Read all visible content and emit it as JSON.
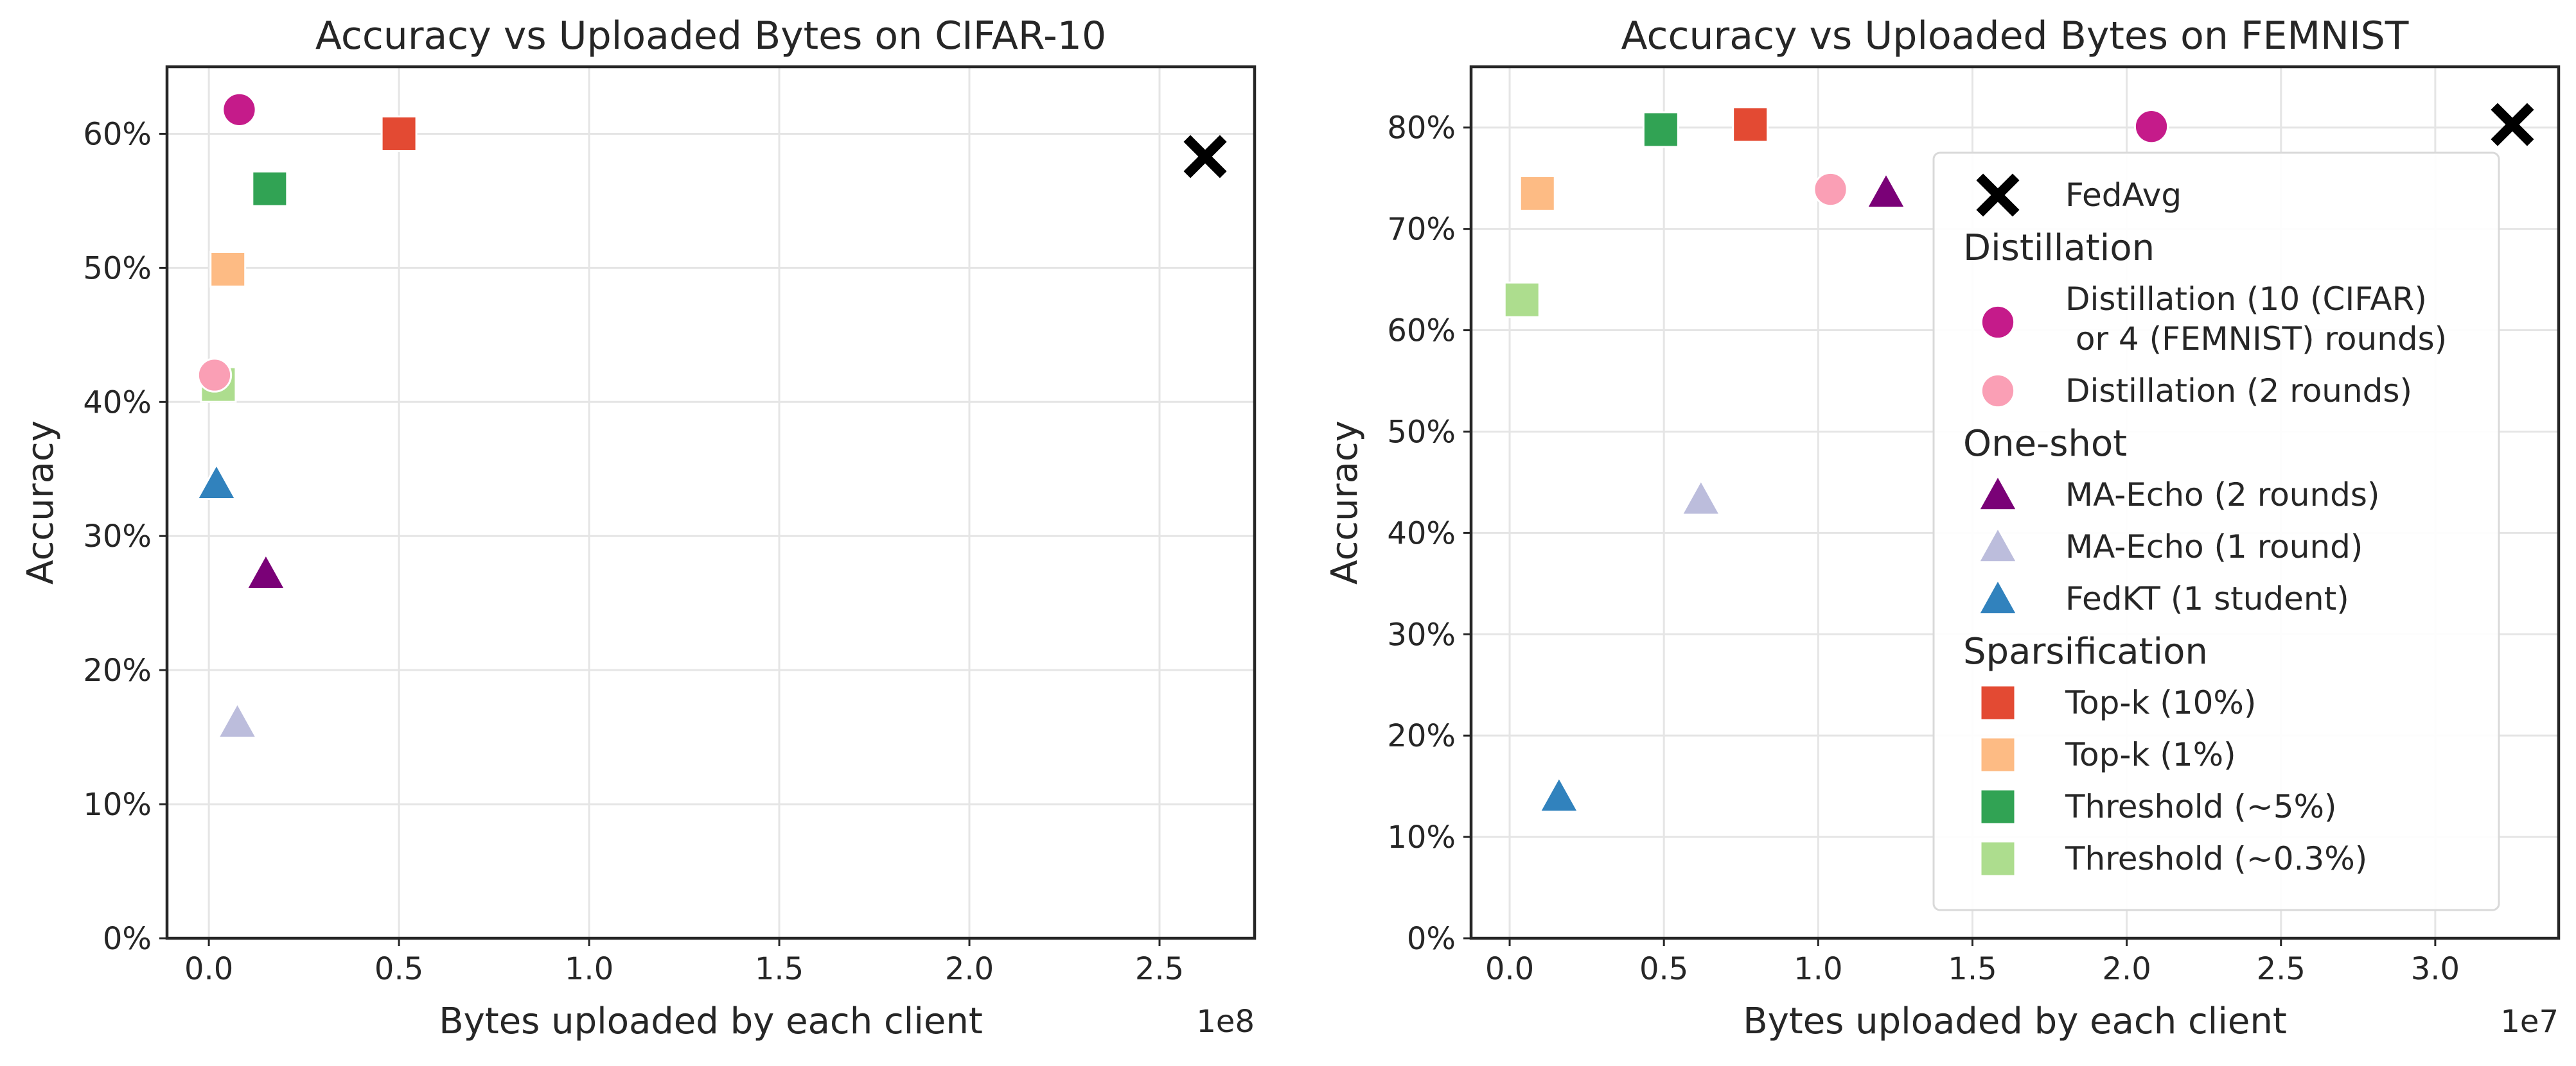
{
  "chart_data": [
    {
      "type": "scatter",
      "title": "Accuracy vs Uploaded Bytes on CIFAR-10",
      "xlabel": "Bytes uploaded by each client",
      "ylabel": "Accuracy",
      "x_offset_label": "1e8",
      "x_scale": 100000000,
      "xlim": [
        -11000000,
        275000000
      ],
      "ylim": [
        0,
        65
      ],
      "xticks": [
        0,
        50000000,
        100000000,
        150000000,
        200000000,
        250000000
      ],
      "xtick_labels": [
        "0.0",
        "0.5",
        "1.0",
        "1.5",
        "2.0",
        "2.5"
      ],
      "yticks": [
        0,
        10,
        20,
        30,
        40,
        50,
        60
      ],
      "ytick_labels": [
        "0%",
        "10%",
        "20%",
        "30%",
        "40%",
        "50%",
        "60%"
      ],
      "grid": true,
      "legend": "none",
      "points": [
        {
          "series": "FedAvg",
          "x": 262000000,
          "y": 58.3
        },
        {
          "series": "Distillation (10 (CIFAR)\n or 4 (FEMNIST) rounds)",
          "x": 8000000,
          "y": 61.8
        },
        {
          "series": "Top-k (10%)",
          "x": 50000000,
          "y": 60.0
        },
        {
          "series": "Threshold (~5%)",
          "x": 16000000,
          "y": 55.9
        },
        {
          "series": "Top-k (1%)",
          "x": 5000000,
          "y": 49.9
        },
        {
          "series": "Threshold (~0.3%)",
          "x": 2500000,
          "y": 41.3
        },
        {
          "series": "Distillation (2 rounds)",
          "x": 1500000,
          "y": 42.0
        },
        {
          "series": "FedKT (1 student)",
          "x": 2000000,
          "y": 33.9
        },
        {
          "series": "MA-Echo (2 rounds)",
          "x": 15000000,
          "y": 27.2
        },
        {
          "series": "MA-Echo (1 round)",
          "x": 7500000,
          "y": 16.1
        }
      ]
    },
    {
      "type": "scatter",
      "title": "Accuracy vs Uploaded Bytes on FEMNIST",
      "xlabel": "Bytes uploaded by each client",
      "ylabel": "Accuracy",
      "x_offset_label": "1e7",
      "x_scale": 10000000,
      "xlim": [
        -1250000,
        34000000
      ],
      "ylim": [
        0,
        86
      ],
      "xticks": [
        0,
        5000000,
        10000000,
        15000000,
        20000000,
        25000000,
        30000000
      ],
      "xtick_labels": [
        "0.0",
        "0.5",
        "1.0",
        "1.5",
        "2.0",
        "2.5",
        "3.0"
      ],
      "yticks": [
        0,
        10,
        20,
        30,
        40,
        50,
        60,
        70,
        80
      ],
      "ytick_labels": [
        "0%",
        "10%",
        "20%",
        "30%",
        "40%",
        "50%",
        "60%",
        "70%",
        "80%"
      ],
      "grid": true,
      "legend": "right",
      "points": [
        {
          "series": "FedAvg",
          "x": 32500000,
          "y": 80.3
        },
        {
          "series": "Distillation (10 (CIFAR)\n or 4 (FEMNIST) rounds)",
          "x": 20800000,
          "y": 80.1
        },
        {
          "series": "Top-k (10%)",
          "x": 7800000,
          "y": 80.3
        },
        {
          "series": "Threshold (~5%)",
          "x": 4900000,
          "y": 79.8
        },
        {
          "series": "Top-k (1%)",
          "x": 900000,
          "y": 73.5
        },
        {
          "series": "Distillation (2 rounds)",
          "x": 10400000,
          "y": 73.9
        },
        {
          "series": "MA-Echo (2 rounds)",
          "x": 12200000,
          "y": 73.6
        },
        {
          "series": "Threshold (~0.3%)",
          "x": 400000,
          "y": 63.0
        },
        {
          "series": "MA-Echo (1 round)",
          "x": 6200000,
          "y": 43.3
        },
        {
          "series": "FedKT (1 student)",
          "x": 1600000,
          "y": 14.0
        }
      ]
    }
  ],
  "legend": {
    "groups": [
      {
        "heading": "",
        "items": [
          {
            "label": "FedAvg",
            "marker": "x",
            "color": "#000000"
          }
        ]
      },
      {
        "heading": "Distillation",
        "items": [
          {
            "label": "Distillation (10 (CIFAR)\n or 4 (FEMNIST) rounds)",
            "marker": "circle",
            "color": "#c51b8a"
          },
          {
            "label": "Distillation (2 rounds)",
            "marker": "circle",
            "color": "#fa9fb5"
          }
        ]
      },
      {
        "heading": "One-shot",
        "items": [
          {
            "label": "MA-Echo (2 rounds)",
            "marker": "triangle",
            "color": "#7a0177"
          },
          {
            "label": "MA-Echo (1 round)",
            "marker": "triangle",
            "color": "#bcbddc"
          },
          {
            "label": "FedKT (1 student)",
            "marker": "triangle",
            "color": "#3182bd"
          }
        ]
      },
      {
        "heading": "Sparsification",
        "items": [
          {
            "label": "Top-k (10%)",
            "marker": "square",
            "color": "#e34a33"
          },
          {
            "label": "Top-k (1%)",
            "marker": "square",
            "color": "#fdbb84"
          },
          {
            "label": "Threshold (~5%)",
            "marker": "square",
            "color": "#31a354"
          },
          {
            "label": "Threshold (~0.3%)",
            "marker": "square",
            "color": "#addd8e"
          }
        ]
      }
    ]
  }
}
